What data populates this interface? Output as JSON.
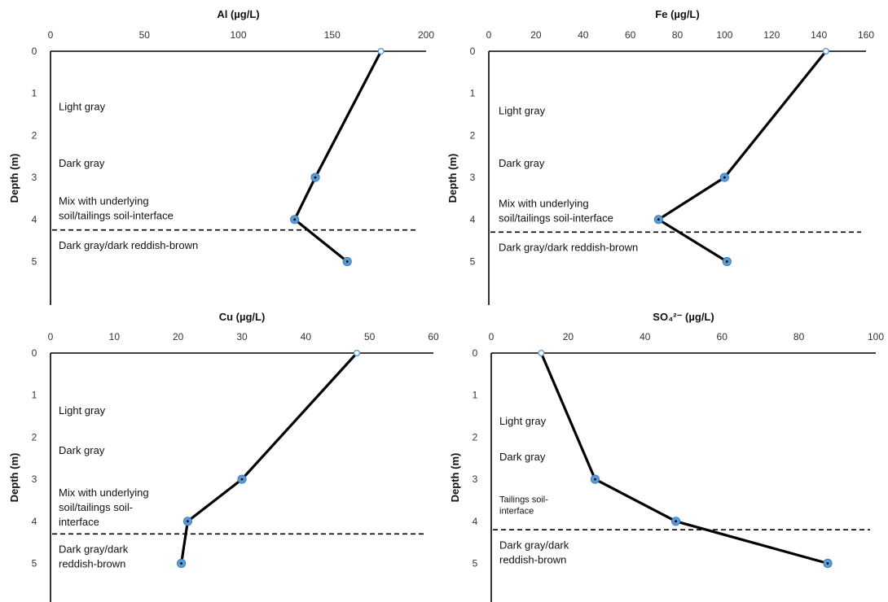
{
  "chart_data": [
    {
      "type": "line",
      "title": "Al (µg/L)",
      "xlabel": "",
      "ylabel": "Depth (m)",
      "xlim": [
        0,
        200
      ],
      "xticks": [
        "0",
        "50",
        "100",
        "150",
        "200"
      ],
      "ylim": [
        0,
        6
      ],
      "yticks": [
        "0",
        "1",
        "2",
        "3",
        "4",
        "5"
      ],
      "x": [
        176,
        141,
        130,
        158
      ],
      "y": [
        0,
        3,
        4,
        5
      ],
      "series_color": "#000000",
      "marker_color": "#5b9bd5",
      "axis_position": "top",
      "annotations": [
        {
          "lines": [
            "Light gray"
          ],
          "depth": 1.4,
          "value": 4,
          "size": "normal"
        },
        {
          "lines": [
            "Dark gray"
          ],
          "depth": 2.75,
          "value": 4,
          "size": "normal"
        },
        {
          "lines": [
            "Mix with underlying",
            "soil/tailings soil-interface"
          ],
          "depth": 3.65,
          "value": 4,
          "size": "normal"
        },
        {
          "lines": [
            "Dark gray/dark reddish-brown"
          ],
          "depth": 4.7,
          "value": 4,
          "size": "normal"
        }
      ],
      "boundary_depth": 4.25
    },
    {
      "type": "line",
      "title": "Fe (µg/L)",
      "xlabel": "",
      "ylabel": "Depth (m)",
      "xlim": [
        0,
        160
      ],
      "xticks": [
        "0",
        "20",
        "40",
        "60",
        "80",
        "100",
        "120",
        "140",
        "160"
      ],
      "ylim": [
        0,
        6
      ],
      "yticks": [
        "0",
        "1",
        "2",
        "3",
        "4",
        "5"
      ],
      "x": [
        143,
        100,
        72,
        101
      ],
      "y": [
        0,
        3,
        4,
        5
      ],
      "series_color": "#000000",
      "marker_color": "#5b9bd5",
      "axis_position": "top",
      "annotations": [
        {
          "lines": [
            "Light gray"
          ],
          "depth": 1.5,
          "value": 4,
          "size": "normal"
        },
        {
          "lines": [
            "Dark gray"
          ],
          "depth": 2.75,
          "value": 4,
          "size": "normal"
        },
        {
          "lines": [
            "Mix with underlying",
            "soil/tailings soil-interface"
          ],
          "depth": 3.7,
          "value": 4,
          "size": "normal"
        },
        {
          "lines": [
            "Dark gray/dark reddish-brown"
          ],
          "depth": 4.75,
          "value": 4,
          "size": "normal"
        }
      ],
      "boundary_depth": 4.3
    },
    {
      "type": "line",
      "title": "Cu (µg/L)",
      "xlabel": "",
      "ylabel": "Depth (m)",
      "xlim": [
        0,
        60
      ],
      "xticks": [
        "0",
        "10",
        "20",
        "30",
        "40",
        "50",
        "60"
      ],
      "ylim": [
        0,
        6
      ],
      "yticks": [
        "0",
        "1",
        "2",
        "3",
        "4",
        "5"
      ],
      "x": [
        48,
        30,
        21.5,
        20.5
      ],
      "y": [
        0,
        3,
        4,
        5
      ],
      "series_color": "#000000",
      "marker_color": "#5b9bd5",
      "axis_position": "top",
      "annotations": [
        {
          "lines": [
            "Light gray"
          ],
          "depth": 1.45,
          "value": 1.3,
          "size": "normal"
        },
        {
          "lines": [
            "Dark gray"
          ],
          "depth": 2.4,
          "value": 1.3,
          "size": "normal"
        },
        {
          "lines": [
            "Mix with underlying",
            "soil/tailings soil-",
            "interface"
          ],
          "depth": 3.4,
          "value": 1.3,
          "size": "normal"
        },
        {
          "lines": [
            "Dark gray/dark",
            "reddish-brown"
          ],
          "depth": 4.75,
          "value": 1.3,
          "size": "normal"
        }
      ],
      "boundary_depth": 4.3
    },
    {
      "type": "line",
      "title": "SO₄²⁻ (µg/L)",
      "xlabel": "",
      "ylabel": "Depth (m)",
      "xlim": [
        0,
        100
      ],
      "xticks": [
        "0",
        "20",
        "40",
        "60",
        "80",
        "100"
      ],
      "ylim": [
        0,
        6
      ],
      "yticks": [
        "0",
        "1",
        "2",
        "3",
        "4",
        "5"
      ],
      "x": [
        13,
        27,
        48,
        87.5
      ],
      "y": [
        0,
        3,
        4,
        5
      ],
      "series_color": "#000000",
      "marker_color": "#5b9bd5",
      "axis_position": "top",
      "annotations": [
        {
          "lines": [
            "Light gray"
          ],
          "depth": 1.7,
          "value": 3,
          "size": "normal"
        },
        {
          "lines": [
            "Dark gray"
          ],
          "depth": 2.55,
          "value": 3,
          "size": "normal"
        },
        {
          "lines": [
            "Tailings soil-",
            "interface"
          ],
          "depth": 3.55,
          "value": 3,
          "size": "small"
        },
        {
          "lines": [
            "Dark gray/dark",
            "reddish-brown"
          ],
          "depth": 4.65,
          "value": 3,
          "size": "normal"
        }
      ],
      "boundary_depth": 4.2
    }
  ]
}
